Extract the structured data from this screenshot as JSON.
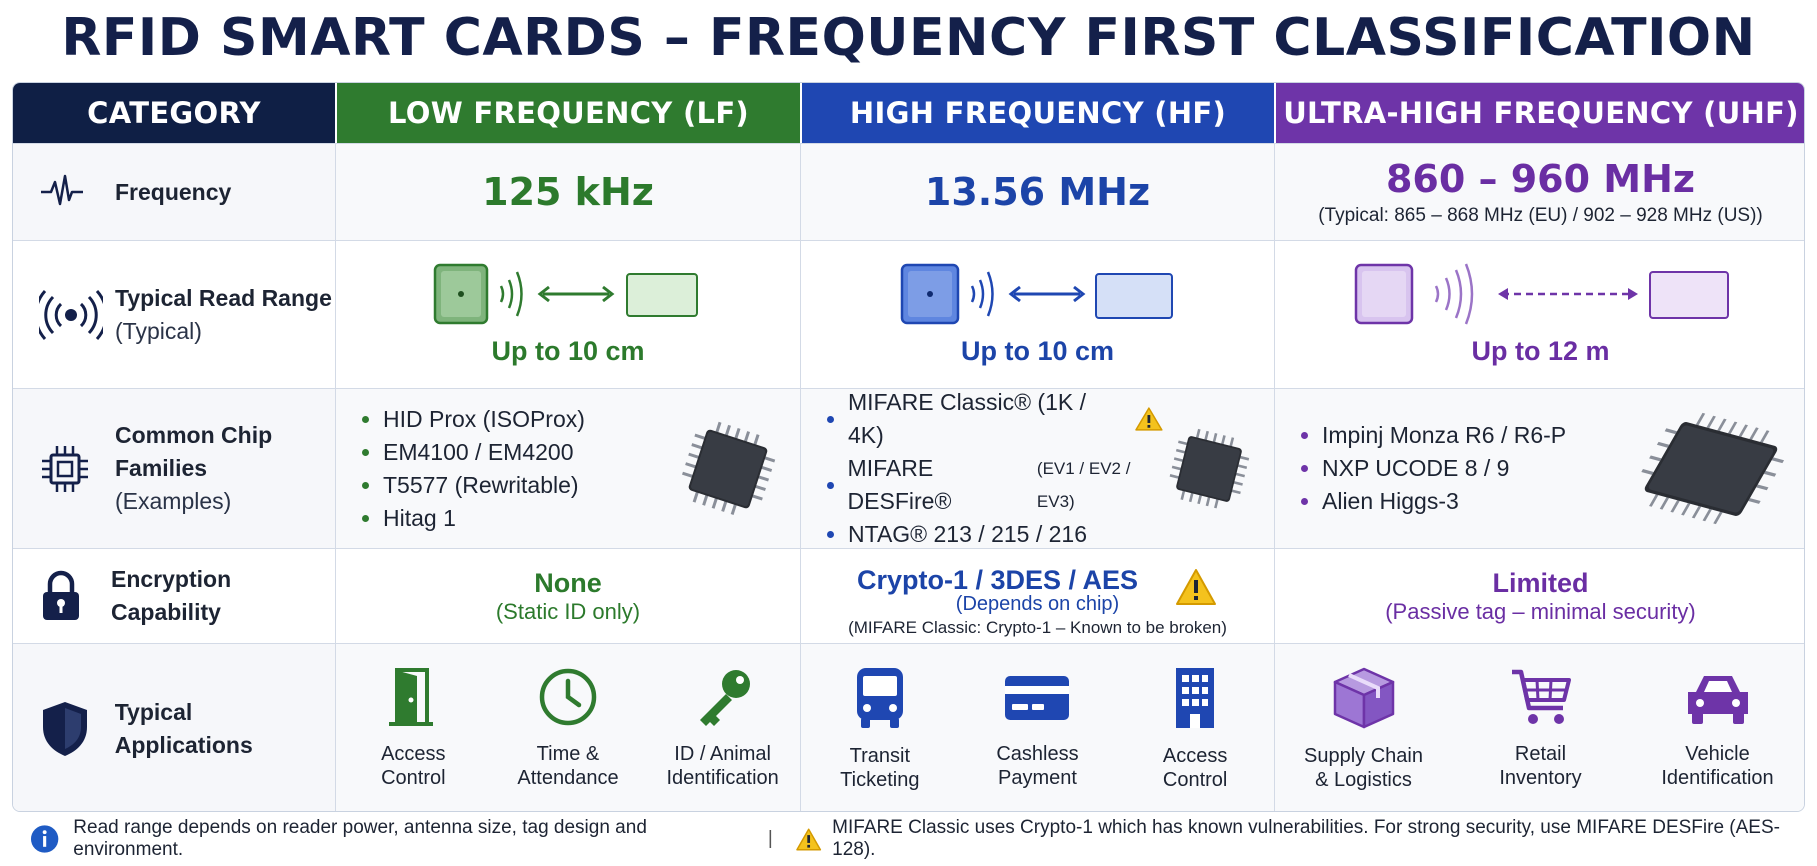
{
  "title": "RFID SMART CARDS – FREQUENCY FIRST CLASSIFICATION",
  "headers": {
    "category": "CATEGORY",
    "lf": "LOW FREQUENCY (LF)",
    "hf": "HIGH FREQUENCY (HF)",
    "uhf": "ULTRA-HIGH FREQUENCY (UHF)"
  },
  "colors": {
    "lf": "#2f7b2f",
    "hf": "#1f47b2",
    "uhf": "#6e34a8",
    "navy": "#0f1f45"
  },
  "rows": {
    "frequency": {
      "label": "Frequency",
      "icon": "waveform-icon",
      "lf": "125 kHz",
      "hf": "13.56 MHz",
      "uhf": "860 – 960 MHz",
      "uhf_note": "(Typical: 865 – 868 MHz (EU) / 902 – 928 MHz (US))"
    },
    "read_range": {
      "label": "Typical Read Range",
      "sublabel": "(Typical)",
      "icon": "broadcast-icon",
      "lf": "Up to 10 cm",
      "hf": "Up to 10 cm",
      "uhf": "Up to 12 m"
    },
    "chips": {
      "label_line1": "Common Chip",
      "label_line2": "Families",
      "sublabel": "(Examples)",
      "icon": "chip-icon",
      "lf": [
        "HID Prox (ISOProx)",
        "EM4100 / EM4200",
        "T5577 (Rewritable)",
        "Hitag 1"
      ],
      "hf": [
        {
          "name": "MIFARE Classic® (1K / 4K)",
          "extra": ""
        },
        {
          "name": "MIFARE DESFire®",
          "extra": "(EV1 / EV2 / EV3)"
        },
        {
          "name": "NTAG® 213 / 215 / 216",
          "extra": ""
        }
      ],
      "uhf": [
        "Impinj Monza R6 / R6-P",
        "NXP UCODE 8 / 9",
        "Alien Higgs-3"
      ]
    },
    "encryption": {
      "label": "Encryption Capability",
      "icon": "padlock-icon",
      "lf_main": "None",
      "lf_sub": "(Static ID only)",
      "hf_main": "Crypto-1 / 3DES / AES",
      "hf_sub": "(Depends on chip)",
      "hf_note": "(MIFARE Classic: Crypto-1 – Known to be broken)",
      "uhf_main": "Limited",
      "uhf_sub": "(Passive tag – minimal security)"
    },
    "applications": {
      "label": "Typical Applications",
      "icon": "shield-icon",
      "lf": [
        {
          "line1": "Access",
          "line2": "Control",
          "icon": "door-icon"
        },
        {
          "line1": "Time &",
          "line2": "Attendance",
          "icon": "clock-icon"
        },
        {
          "line1": "ID / Animal",
          "line2": "Identification",
          "icon": "key-icon"
        }
      ],
      "hf": [
        {
          "line1": "Transit",
          "line2": "Ticketing",
          "icon": "bus-icon"
        },
        {
          "line1": "Cashless",
          "line2": "Payment",
          "icon": "card-icon"
        },
        {
          "line1": "Access",
          "line2": "Control",
          "icon": "building-icon"
        }
      ],
      "uhf": [
        {
          "line1": "Supply Chain",
          "line2": "& Logistics",
          "icon": "package-icon"
        },
        {
          "line1": "Retail",
          "line2": "Inventory",
          "icon": "cart-icon"
        },
        {
          "line1": "Vehicle",
          "line2": "Identification",
          "icon": "car-icon"
        }
      ]
    }
  },
  "footer": {
    "info": "Read range depends on reader power, antenna size, tag design and environment.",
    "separator": "|",
    "warning": "MIFARE Classic uses Crypto-1 which has known vulnerabilities. For strong security, use MIFARE DESFire (AES-128)."
  }
}
